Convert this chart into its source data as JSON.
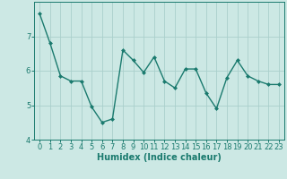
{
  "x": [
    0,
    1,
    2,
    3,
    4,
    5,
    6,
    7,
    8,
    9,
    10,
    11,
    12,
    13,
    14,
    15,
    16,
    17,
    18,
    19,
    20,
    21,
    22,
    23
  ],
  "y": [
    7.65,
    6.8,
    5.85,
    5.7,
    5.7,
    4.95,
    4.5,
    4.6,
    6.6,
    6.3,
    5.95,
    6.4,
    5.7,
    5.5,
    6.05,
    6.05,
    5.35,
    4.9,
    5.8,
    6.3,
    5.85,
    5.7,
    5.6,
    5.6
  ],
  "line_color": "#1a7a6e",
  "marker": "D",
  "marker_size": 2,
  "bg_color": "#cce8e4",
  "grid_color": "#aacfcc",
  "xlabel": "Humidex (Indice chaleur)",
  "ylim": [
    4.0,
    8.0
  ],
  "xlim_min": -0.5,
  "xlim_max": 23.5,
  "yticks": [
    4,
    5,
    6,
    7
  ],
  "xticks": [
    0,
    1,
    2,
    3,
    4,
    5,
    6,
    7,
    8,
    9,
    10,
    11,
    12,
    13,
    14,
    15,
    16,
    17,
    18,
    19,
    20,
    21,
    22,
    23
  ],
  "xlabel_fontsize": 7,
  "tick_fontsize": 6,
  "axis_color": "#1a7a6e",
  "line_width": 1.0
}
